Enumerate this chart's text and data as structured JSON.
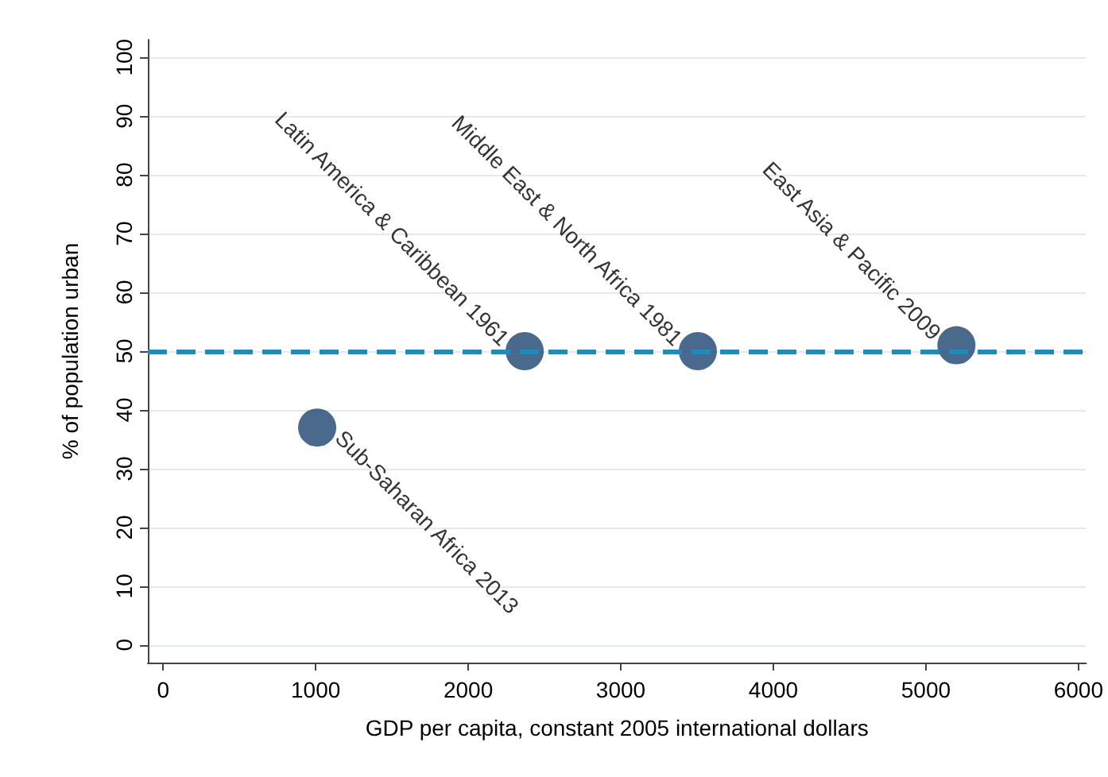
{
  "chart_data": {
    "type": "scatter",
    "xlabel": "GDP per capita, constant 2005 international dollars",
    "ylabel": "% of population urban",
    "x": [
      1010,
      2370,
      3505,
      5200
    ],
    "series": [
      {
        "color": "#1c4570",
        "values": [
          37,
          50,
          50,
          51
        ]
      }
    ],
    "xlim": [
      -100,
      6050
    ],
    "xticks": [
      0,
      1000,
      2000,
      3000,
      4000,
      5000,
      6000
    ],
    "ylim": [
      -3,
      103
    ],
    "yticks": [
      0,
      10,
      20,
      30,
      40,
      50,
      60,
      70,
      80,
      90,
      100
    ],
    "grid": "y",
    "marker": "circle",
    "ref_lines": [
      {
        "axis": "y",
        "value": 50,
        "color": "#1a8cbf",
        "line_style": "dashed"
      }
    ],
    "annotations": [
      {
        "text": "Sub-Saharan Africa 2013",
        "x": 1010,
        "y": 37
      },
      {
        "text": "Latin America & Caribbean 1961",
        "x": 2370,
        "y": 50
      },
      {
        "text": "Middle East & North Africa 1981",
        "x": 3505,
        "y": 50
      },
      {
        "text": "East Asia & Pacific 2009",
        "x": 5200,
        "y": 51
      }
    ]
  }
}
